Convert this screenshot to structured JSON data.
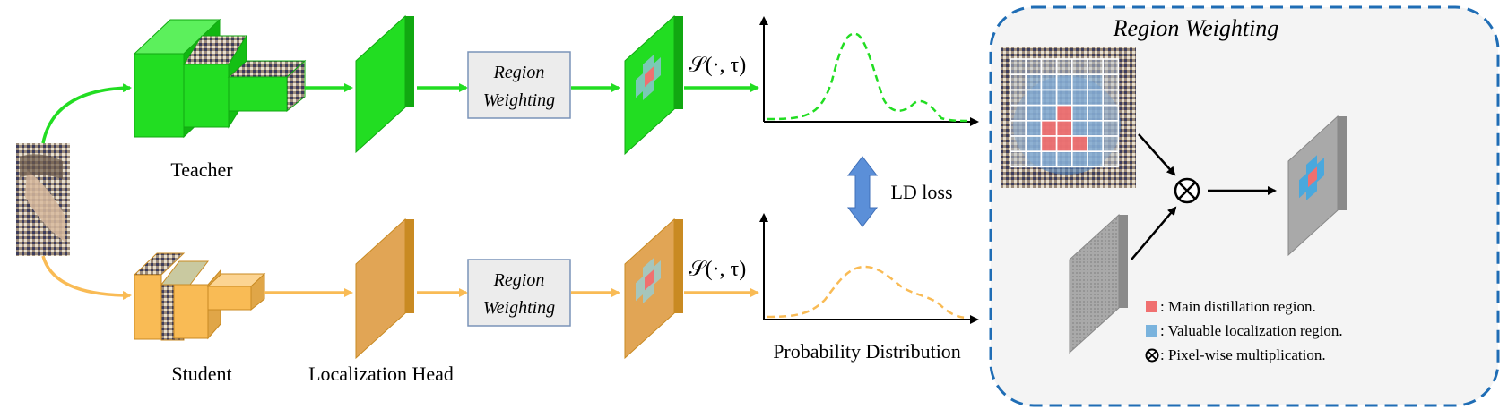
{
  "labels": {
    "teacher": "Teacher",
    "student": "Student",
    "localization_head": "Localization Head",
    "probability_distribution": "Probability Distribution",
    "ld_loss": "LD loss",
    "softmax_teacher": "𝒮(·, τ)",
    "softmax_student": "𝒮(·, τ)"
  },
  "region_weighting_boxes": {
    "teacher_line1": "Region",
    "teacher_line2": "Weighting",
    "student_line1": "Region",
    "student_line2": "Weighting"
  },
  "panel": {
    "title": "Region Weighting",
    "multiply_symbol": "⊗"
  },
  "legend": [
    {
      "symbol": "square",
      "color": "#f07070",
      "text": ": Main distillation region."
    },
    {
      "symbol": "square",
      "color": "#7ab3dd",
      "text": ": Valuable localization region."
    },
    {
      "symbol": "otimes",
      "color": "#000000",
      "text": ": Pixel-wise multiplication."
    }
  ],
  "colors": {
    "teacher": "#22dd22",
    "teacher_dark": "#11a811",
    "student": "#f9bb55",
    "student_dark": "#d9952c",
    "panel_border": "#1f6db5",
    "panel_bg": "#f4f4f4",
    "ld_arrow": "#5b8fd8",
    "main_region": "#f07070",
    "valuable_region": "#7ab3dd"
  }
}
